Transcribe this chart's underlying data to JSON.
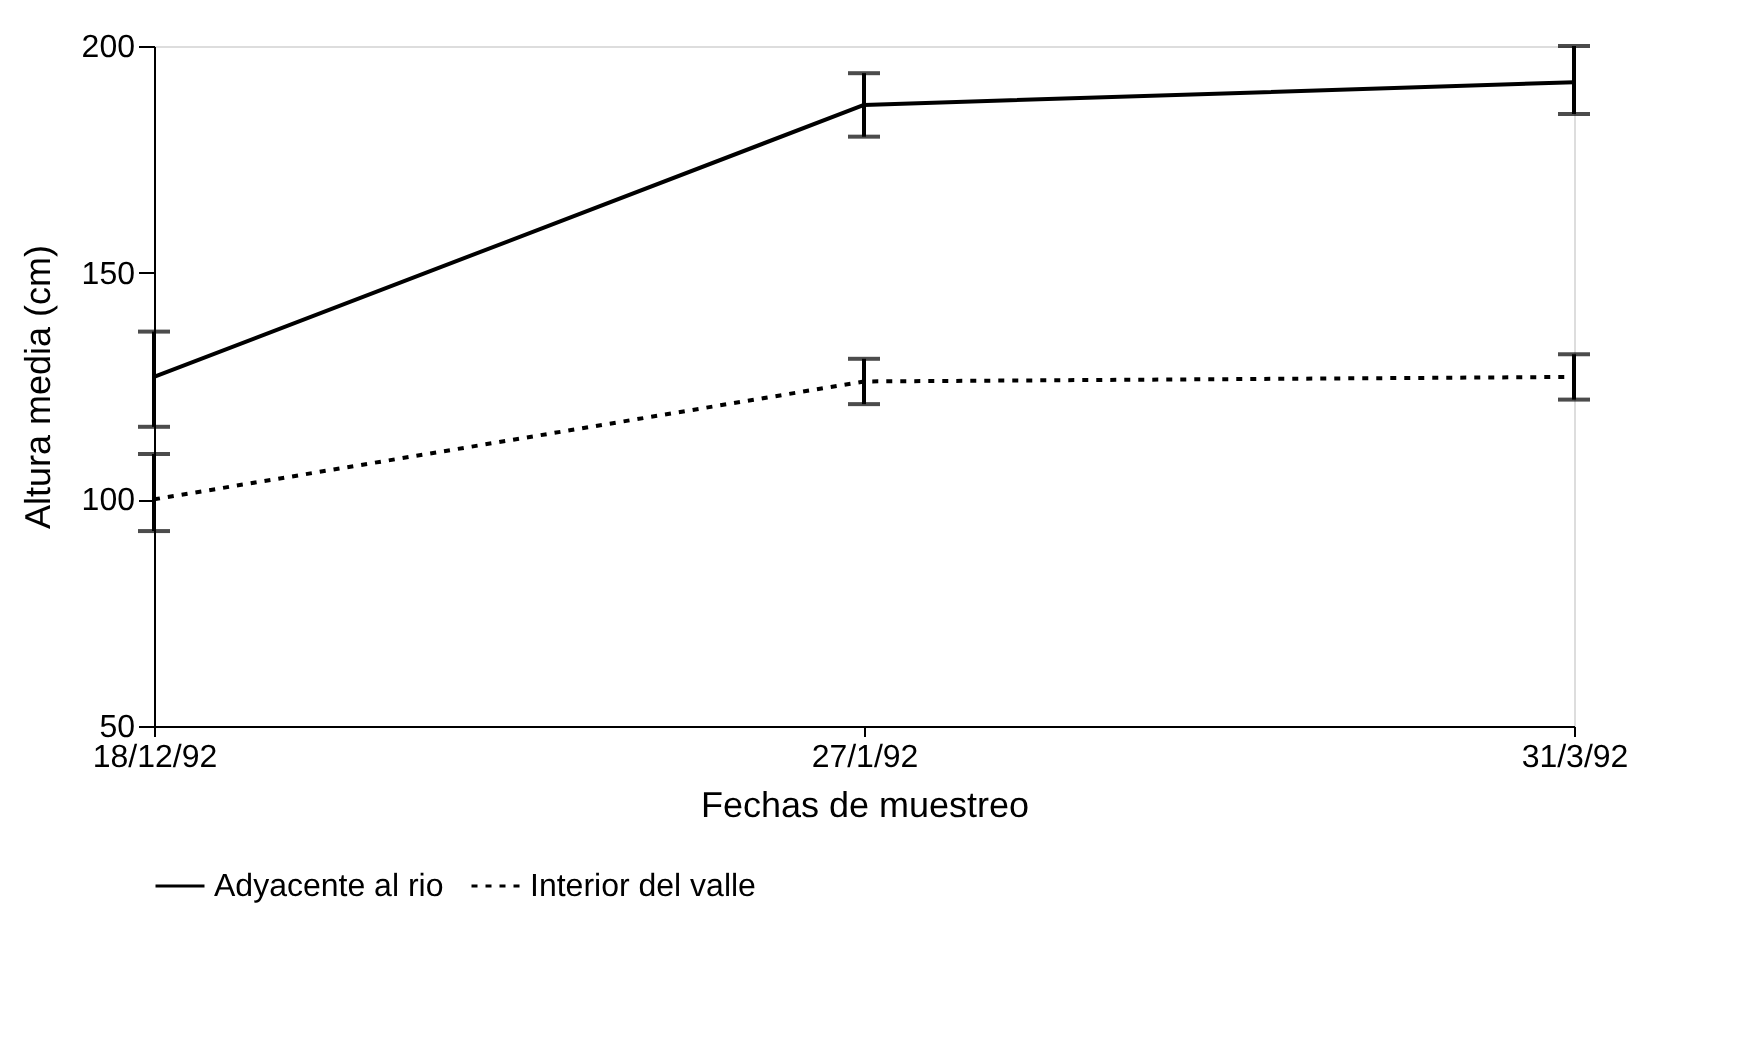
{
  "chart_data": {
    "type": "line",
    "xlabel": "Fechas de muestreo",
    "ylabel": "Altura media (cm)",
    "categories": [
      "18/12/92",
      "27/1/92",
      "31/3/92"
    ],
    "series": [
      {
        "name": "Adyacente al rio",
        "color": "#000000",
        "line_style": "solid",
        "values": [
          127,
          187,
          192
        ],
        "errors": [
          [
            116,
            137
          ],
          [
            180,
            194
          ],
          [
            185,
            200
          ]
        ]
      },
      {
        "name": "Interior del valle",
        "color": "#000000",
        "line_style": "dotted",
        "values": [
          100,
          126,
          127
        ],
        "errors": [
          [
            93,
            110
          ],
          [
            121,
            131
          ],
          [
            122,
            132
          ]
        ]
      }
    ],
    "ylim": [
      50,
      200
    ],
    "yticks": [
      50,
      100,
      150,
      200
    ],
    "grid": false,
    "legend": "bottom",
    "marker": "none"
  }
}
